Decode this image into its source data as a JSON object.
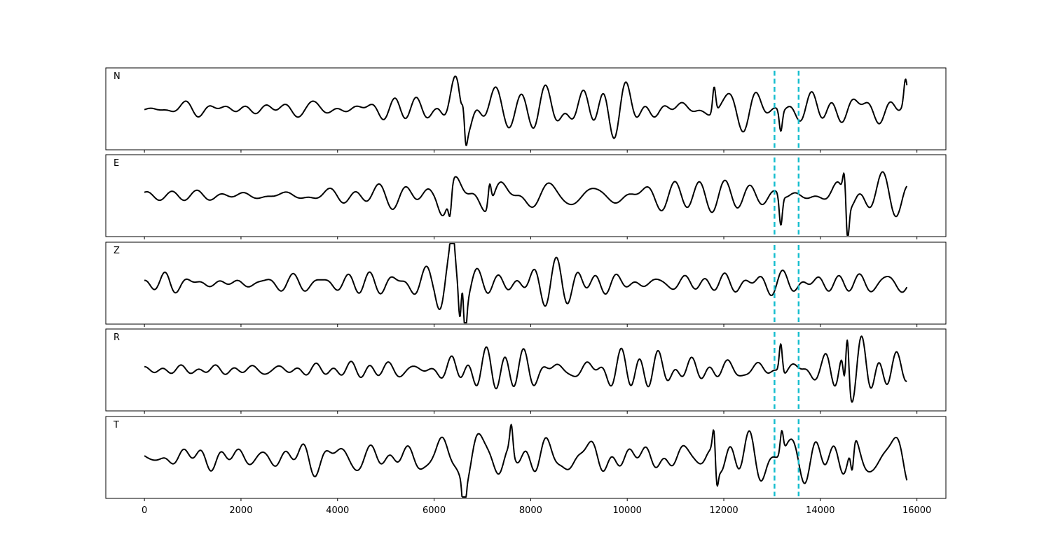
{
  "chart_data": {
    "type": "line",
    "title": "",
    "xlabel": "",
    "ylabel": "",
    "xlim": [
      -800,
      16600
    ],
    "xticks": [
      0,
      2000,
      4000,
      6000,
      8000,
      10000,
      12000,
      14000,
      16000
    ],
    "grid": false,
    "legend": "none",
    "trace_color": "#000000",
    "marker_color": "#17becf",
    "vertical_markers": [
      13050,
      13550
    ],
    "x_start": 0,
    "x_end": 15800,
    "series": [
      {
        "name": "N",
        "ylim": [
          -1.15,
          1.15
        ],
        "events": [
          {
            "x": 6620,
            "y": 1.0
          },
          {
            "x": 6640,
            "y": -0.95
          },
          {
            "x": 11800,
            "y": 0.75
          },
          {
            "x": 13180,
            "y": -0.6
          },
          {
            "x": 15760,
            "y": 0.6
          }
        ],
        "envelope": [
          [
            0,
            0.12
          ],
          [
            3500,
            0.2
          ],
          [
            6000,
            0.25
          ],
          [
            6500,
            0.85
          ],
          [
            8000,
            0.5
          ],
          [
            10000,
            0.55
          ],
          [
            12000,
            0.4
          ],
          [
            14000,
            0.45
          ],
          [
            15800,
            0.45
          ]
        ]
      },
      {
        "name": "E",
        "ylim": [
          -1.15,
          1.15
        ],
        "events": [
          {
            "x": 6330,
            "y": -0.7
          },
          {
            "x": 7150,
            "y": 0.65
          },
          {
            "x": 13180,
            "y": -0.85
          },
          {
            "x": 14500,
            "y": 0.75
          },
          {
            "x": 14560,
            "y": -1.05
          }
        ],
        "envelope": [
          [
            0,
            0.15
          ],
          [
            6000,
            0.2
          ],
          [
            6300,
            0.55
          ],
          [
            8000,
            0.45
          ],
          [
            10000,
            0.45
          ],
          [
            12000,
            0.35
          ],
          [
            14000,
            0.4
          ],
          [
            14500,
            0.85
          ],
          [
            15800,
            0.45
          ]
        ]
      },
      {
        "name": "Z",
        "ylim": [
          -1.15,
          1.15
        ],
        "events": [
          {
            "x": 6380,
            "y": 0.8
          },
          {
            "x": 6540,
            "y": -1.0
          },
          {
            "x": 6580,
            "y": 0.9
          },
          {
            "x": 6640,
            "y": -0.95
          }
        ],
        "envelope": [
          [
            0,
            0.1
          ],
          [
            500,
            0.3
          ],
          [
            3000,
            0.2
          ],
          [
            6000,
            0.3
          ],
          [
            6400,
            0.95
          ],
          [
            7300,
            0.45
          ],
          [
            10000,
            0.35
          ],
          [
            13000,
            0.3
          ],
          [
            15800,
            0.35
          ]
        ]
      },
      {
        "name": "R",
        "ylim": [
          -1.15,
          1.15
        ],
        "events": [
          {
            "x": 13180,
            "y": 0.85
          },
          {
            "x": 14560,
            "y": 1.1
          },
          {
            "x": 14500,
            "y": -0.75
          }
        ],
        "envelope": [
          [
            0,
            0.12
          ],
          [
            4000,
            0.2
          ],
          [
            6000,
            0.25
          ],
          [
            6400,
            0.5
          ],
          [
            8000,
            0.5
          ],
          [
            10000,
            0.55
          ],
          [
            12000,
            0.4
          ],
          [
            14000,
            0.35
          ],
          [
            14600,
            0.9
          ],
          [
            15800,
            0.35
          ]
        ]
      },
      {
        "name": "T",
        "ylim": [
          -1.15,
          1.15
        ],
        "events": [
          {
            "x": 6620,
            "y": -1.05
          },
          {
            "x": 7600,
            "y": 0.75
          },
          {
            "x": 11800,
            "y": 0.85
          },
          {
            "x": 11850,
            "y": -0.75
          },
          {
            "x": 13200,
            "y": 0.65
          },
          {
            "x": 14660,
            "y": -0.8
          }
        ],
        "envelope": [
          [
            0,
            0.15
          ],
          [
            500,
            0.35
          ],
          [
            3500,
            0.3
          ],
          [
            6000,
            0.35
          ],
          [
            6600,
            0.75
          ],
          [
            8000,
            0.55
          ],
          [
            10000,
            0.55
          ],
          [
            12000,
            0.55
          ],
          [
            14000,
            0.45
          ],
          [
            15800,
            0.5
          ]
        ]
      }
    ]
  }
}
